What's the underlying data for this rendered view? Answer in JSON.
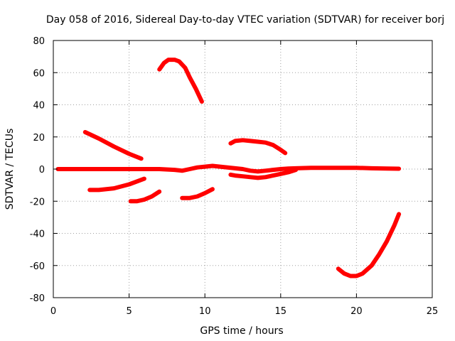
{
  "chart_data": {
    "type": "line",
    "title": "Day 058 of 2016, Sidereal Day-to-day VTEC variation (SDTVAR) for receiver borj",
    "xlabel": "GPS time / hours",
    "ylabel": "SDTVAR / TECUs",
    "xlim": [
      0,
      25
    ],
    "ylim": [
      -80,
      80
    ],
    "xticks": [
      0,
      5,
      10,
      15,
      20,
      25
    ],
    "yticks": [
      -80,
      -60,
      -40,
      -20,
      0,
      20,
      40,
      60,
      80
    ],
    "xtick_labels": [
      "0",
      "5",
      "10",
      "15",
      "20",
      "25"
    ],
    "ytick_labels": [
      "-80",
      "-60",
      "-40",
      "-20",
      "0",
      "20",
      "40",
      "60",
      "80"
    ],
    "grid": true,
    "legend": "none",
    "color": "#ff0000",
    "series": [
      {
        "x": [
          0.3,
          1,
          2,
          3,
          4,
          5,
          6,
          7,
          8,
          8.5,
          9,
          9.5,
          10,
          10.5,
          11,
          12,
          12.5,
          13,
          13.5,
          14,
          14.5,
          15,
          15.5,
          16,
          17,
          18,
          19,
          20,
          21,
          22,
          22.8
        ],
        "y": [
          0,
          0,
          0,
          0,
          0,
          0,
          0,
          0,
          -0.5,
          -1,
          0,
          1,
          1.5,
          2,
          1.5,
          0.5,
          0,
          -1,
          -1.5,
          -1,
          -0.5,
          0,
          0.3,
          0.5,
          0.8,
          0.8,
          0.8,
          0.8,
          0.5,
          0.3,
          0.2
        ]
      },
      {
        "x": [
          2.1,
          3,
          4,
          5,
          5.8
        ],
        "y": [
          23,
          19,
          14,
          9.5,
          6.5
        ]
      },
      {
        "x": [
          2.4,
          3,
          4,
          5,
          6
        ],
        "y": [
          -13,
          -13,
          -12,
          -9.5,
          -6
        ]
      },
      {
        "x": [
          5.1,
          5.5,
          6,
          6.5,
          7
        ],
        "y": [
          -20,
          -20,
          -19,
          -17,
          -14
        ]
      },
      {
        "x": [
          7,
          7.3,
          7.6,
          8,
          8.3,
          8.7,
          9,
          9.4,
          9.8
        ],
        "y": [
          62,
          66,
          68,
          68,
          67,
          63,
          57,
          50,
          42
        ]
      },
      {
        "x": [
          8.5,
          9,
          9.5,
          10,
          10.5
        ],
        "y": [
          -18,
          -18,
          -17,
          -15,
          -12.5
        ]
      },
      {
        "x": [
          11.7,
          12,
          12.5,
          13,
          13.5,
          14,
          14.5,
          15,
          15.3
        ],
        "y": [
          16,
          17.5,
          18,
          17.5,
          17,
          16.5,
          15,
          12,
          10
        ]
      },
      {
        "x": [
          11.7,
          12,
          12.5,
          13,
          13.5,
          14,
          14.5,
          15,
          15.5,
          16
        ],
        "y": [
          -3.5,
          -4,
          -4.5,
          -5,
          -5.5,
          -5,
          -4,
          -3,
          -2,
          -0.5
        ]
      },
      {
        "x": [
          18.8,
          19.2,
          19.6,
          20,
          20.4,
          21,
          21.5,
          22,
          22.5,
          22.8
        ],
        "y": [
          -62,
          -65,
          -66.5,
          -66.5,
          -65,
          -60,
          -53,
          -45,
          -35,
          -28
        ]
      }
    ]
  }
}
